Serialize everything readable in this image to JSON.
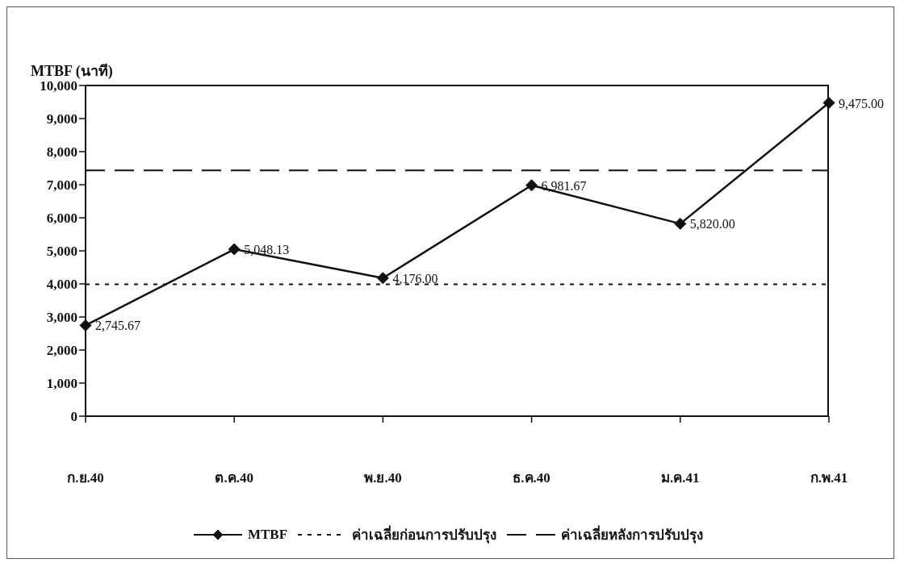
{
  "chart_data": {
    "type": "line",
    "ylabel": "MTBF (นาที)",
    "categories": [
      "ก.ย.40",
      "ต.ค.40",
      "พ.ย.40",
      "ธ.ค.40",
      "ม.ค.41",
      "ก.พ.41"
    ],
    "series": [
      {
        "name": "MTBF",
        "color": "#111111",
        "values": [
          2745.67,
          5048.13,
          4176,
          6981.67,
          5820,
          9475
        ],
        "value_labels": [
          "2,745.67",
          "5,048.13",
          "4,176.00",
          "6,981.67",
          "5,820.00",
          "9,475.00"
        ]
      }
    ],
    "ylim": [
      0,
      10000
    ],
    "yticks": [
      {
        "value": 0,
        "label": "0"
      },
      {
        "value": 1000,
        "label": "1,000"
      },
      {
        "value": 2000,
        "label": "2,000"
      },
      {
        "value": 3000,
        "label": "3,000"
      },
      {
        "value": 4000,
        "label": "4,000"
      },
      {
        "value": 5000,
        "label": "5,000"
      },
      {
        "value": 6000,
        "label": "6,000"
      },
      {
        "value": 7000,
        "label": "7,000"
      },
      {
        "value": 8000,
        "label": "8,000"
      },
      {
        "value": 9000,
        "label": "9,000"
      },
      {
        "value": 10000,
        "label": "10,000"
      }
    ],
    "ref_lines": [
      {
        "axis": "y",
        "value": 3990,
        "label": "ค่าเฉลี่ยก่อนการปรับปรุง",
        "color": "#111111",
        "line_style": "dotted"
      },
      {
        "axis": "y",
        "value": 7430,
        "label": "ค่าเฉลี่ยหลังการปรับปรุง",
        "color": "#111111",
        "line_style": "dashed"
      }
    ],
    "marker": "diamond",
    "line_style": "solid",
    "legend": "bottom"
  }
}
